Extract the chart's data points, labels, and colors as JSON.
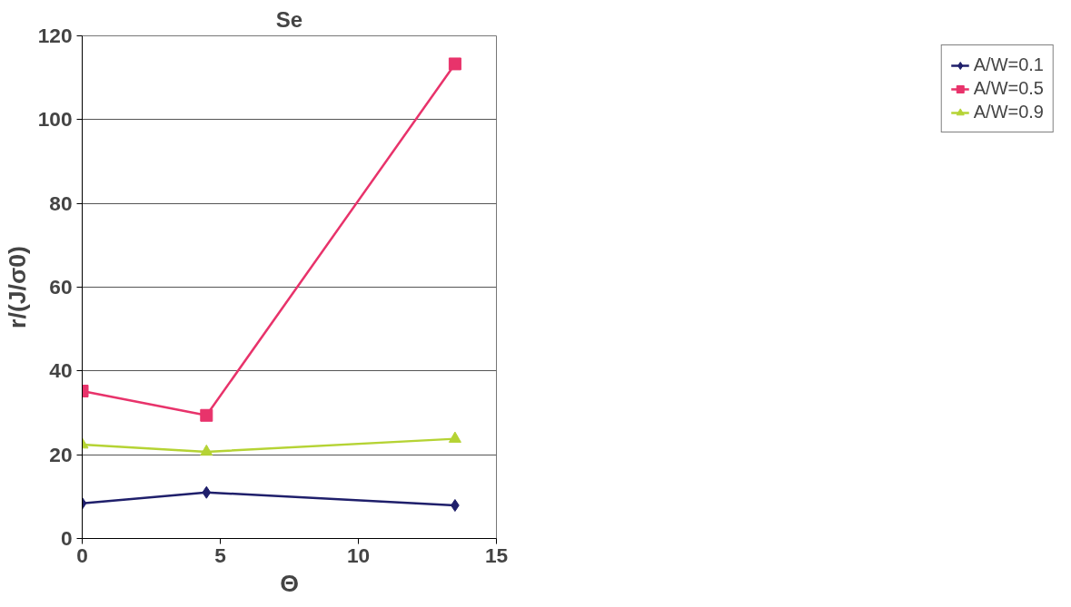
{
  "chart_data": {
    "type": "line",
    "title": "Se",
    "xlabel": "Θ",
    "ylabel": "r/(J/σ0)",
    "x": [
      0,
      4.5,
      13.5
    ],
    "xlim": [
      0,
      15
    ],
    "xticks": [
      0,
      5,
      10,
      15
    ],
    "ylim": [
      0,
      120
    ],
    "yticks": [
      0,
      20,
      40,
      60,
      80,
      100,
      120
    ],
    "grid": "y",
    "legend": "right",
    "line_style": "solid",
    "series": [
      {
        "name": "A/W=0.1",
        "color": "#1f1f6b",
        "marker": "diamond",
        "values": [
          8.4,
          11,
          7.9
        ]
      },
      {
        "name": "A/W=0.5",
        "color": "#e8336b",
        "marker": "square",
        "values": [
          35.2,
          29.4,
          113.3
        ]
      },
      {
        "name": "A/W=0.9",
        "color": "#b5d334",
        "marker": "triangle",
        "values": [
          22.4,
          20.7,
          23.8
        ]
      }
    ]
  }
}
